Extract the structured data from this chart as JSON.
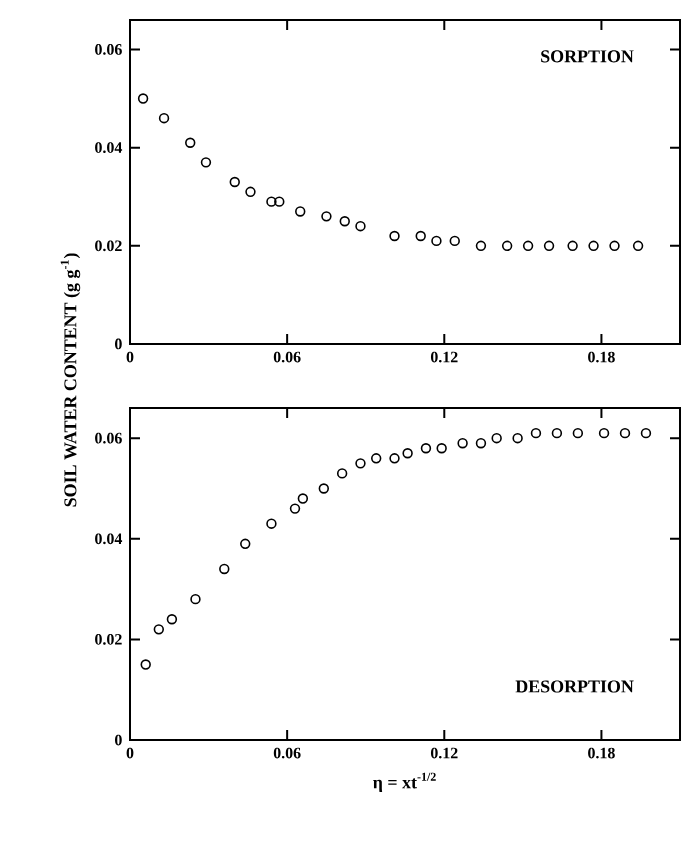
{
  "chart_data": [
    {
      "type": "scatter",
      "marker": "circle",
      "ylabel": "SOIL WATER CONTENT (g g$^{-1}$)",
      "annotations": [
        "SORPTION"
      ],
      "xlim": [
        0,
        0.21
      ],
      "ylim": [
        0,
        0.066
      ],
      "xticks": [
        0,
        0.06,
        0.12,
        0.18
      ],
      "yticks": [
        0,
        0.02,
        0.04,
        0.06
      ],
      "series": [
        {
          "color": "#000000",
          "x": [
            0.005,
            0.013,
            0.023,
            0.029,
            0.04,
            0.046,
            0.054,
            0.057,
            0.065,
            0.075,
            0.082,
            0.088,
            0.101,
            0.111,
            0.117,
            0.124,
            0.134,
            0.144,
            0.152,
            0.16,
            0.169,
            0.177,
            0.185,
            0.194
          ],
          "values": [
            0.05,
            0.046,
            0.041,
            0.037,
            0.033,
            0.031,
            0.029,
            0.029,
            0.027,
            0.026,
            0.025,
            0.024,
            0.022,
            0.022,
            0.021,
            0.021,
            0.02,
            0.02,
            0.02,
            0.02,
            0.02,
            0.02,
            0.02,
            0.02
          ]
        }
      ]
    },
    {
      "type": "scatter",
      "marker": "circle",
      "xlabel": "η = xt$^{-1/2}$",
      "annotations": [
        "DESORPTION"
      ],
      "xlim": [
        0,
        0.21
      ],
      "ylim": [
        0,
        0.066
      ],
      "xticks": [
        0,
        0.06,
        0.12,
        0.18
      ],
      "yticks": [
        0,
        0.02,
        0.04,
        0.06
      ],
      "series": [
        {
          "color": "#000000",
          "x": [
            0.006,
            0.011,
            0.016,
            0.025,
            0.036,
            0.044,
            0.054,
            0.063,
            0.066,
            0.074,
            0.081,
            0.088,
            0.094,
            0.101,
            0.106,
            0.113,
            0.119,
            0.127,
            0.134,
            0.14,
            0.148,
            0.155,
            0.163,
            0.171,
            0.181,
            0.189,
            0.197
          ],
          "values": [
            0.015,
            0.022,
            0.024,
            0.028,
            0.034,
            0.039,
            0.043,
            0.046,
            0.048,
            0.05,
            0.053,
            0.055,
            0.056,
            0.056,
            0.057,
            0.058,
            0.058,
            0.059,
            0.059,
            0.06,
            0.06,
            0.061,
            0.061,
            0.061,
            0.061,
            0.061,
            0.061
          ]
        }
      ]
    }
  ]
}
